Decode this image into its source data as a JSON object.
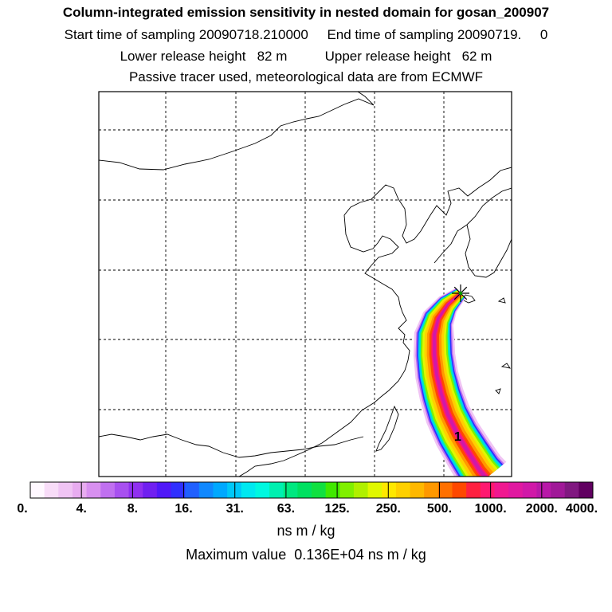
{
  "header": {
    "title": "Column-integrated emission sensitivity in nested domain for gosan_200907",
    "sampling_line": "Start time of sampling 20090718.210000     End time of sampling 20090719.     0",
    "release_line": "Lower release height   82 m          Upper release height   62 m",
    "tracer_line": "Passive tracer used, meteorological data are from ECMWF"
  },
  "chart_data": {
    "type": "heatmap",
    "title": "Column-integrated emission sensitivity in nested domain for gosan_200907",
    "receptor": "gosan",
    "plume_label": "1",
    "colorbar": {
      "units": "ns m / kg",
      "tick_labels": [
        "0.",
        "4.",
        "8.",
        "16.",
        "31.",
        "63.",
        "125.",
        "250.",
        "500.",
        "1000.",
        "2000.",
        "4000."
      ],
      "tick_values": [
        0,
        4,
        8,
        16,
        31,
        63,
        125,
        250,
        500,
        1000,
        2000,
        4000
      ],
      "colors": [
        "#fff8ff",
        "#f8dcf8",
        "#f0c4f4",
        "#e8acf0",
        "#d890f0",
        "#c070f0",
        "#a850f0",
        "#9030f0",
        "#7020f0",
        "#5018f8",
        "#3030ff",
        "#2060ff",
        "#1088ff",
        "#00a8ff",
        "#00c8f8",
        "#00e8f0",
        "#00f8e0",
        "#00f0b0",
        "#00e880",
        "#00e060",
        "#10e040",
        "#40e800",
        "#80f000",
        "#b0f000",
        "#e0f800",
        "#ffe800",
        "#ffd000",
        "#ffb800",
        "#ff9800",
        "#ff7000",
        "#ff4800",
        "#ff2040",
        "#ff1870",
        "#f01890",
        "#e018a0",
        "#d018a8",
        "#b818a8",
        "#a01898",
        "#801880",
        "#600060"
      ]
    },
    "maximum_value_text": "Maximum value  0.136E+04 ns m / kg",
    "maximum_value": 1360,
    "grid": true
  }
}
